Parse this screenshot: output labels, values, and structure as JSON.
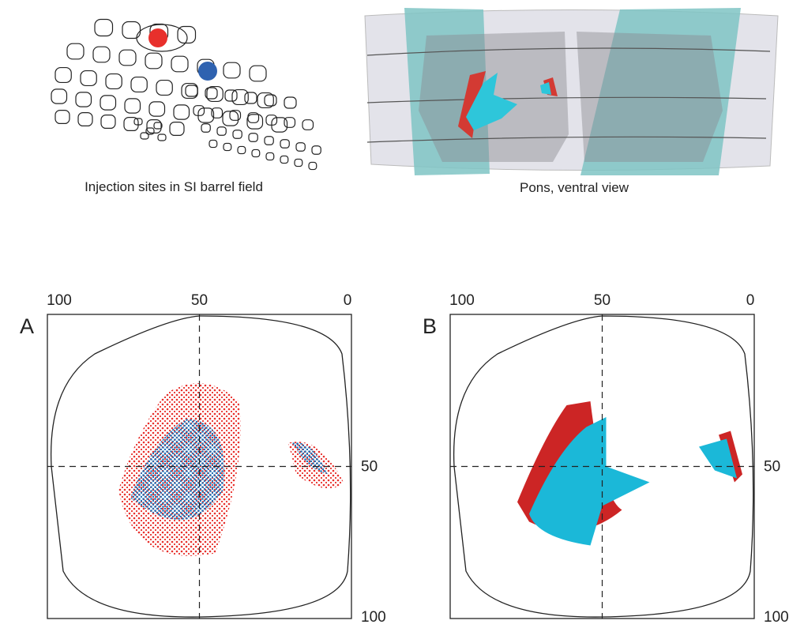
{
  "top_left": {
    "caption": "Injection sites in SI barrel field"
  },
  "top_right": {
    "caption": "Pons, ventral view"
  },
  "panels": [
    {
      "label": "A",
      "top_ticks": [
        "100",
        "50",
        "0"
      ],
      "right_ticks": [
        "50",
        "100"
      ]
    },
    {
      "label": "B",
      "top_ticks": [
        "100",
        "50",
        "0"
      ],
      "right_ticks": [
        "50",
        "100"
      ]
    }
  ]
}
